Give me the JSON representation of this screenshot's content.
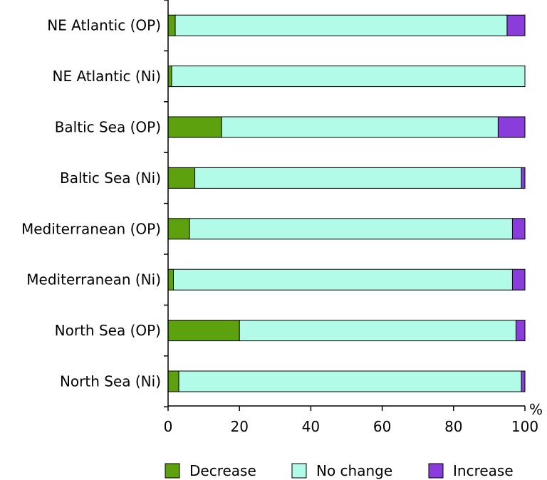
{
  "chart_data": {
    "type": "bar",
    "orientation": "horizontal",
    "stacked": true,
    "title": "",
    "xlabel": "%",
    "ylabel": "",
    "xlim": [
      0,
      100
    ],
    "xticks": [
      "0",
      "20",
      "40",
      "60",
      "80",
      "100"
    ],
    "categories": [
      "NE Atlantic (OP)",
      "NE Atlantic (Ni)",
      "Baltic Sea (OP)",
      "Baltic Sea (Ni)",
      "Mediterranean (OP)",
      "Mediterranean (Ni)",
      "North Sea (OP)",
      "North Sea (Ni)"
    ],
    "series": [
      {
        "name": "Decrease",
        "color": "#5ea10e",
        "values": [
          2,
          1,
          15,
          7.5,
          6,
          1.5,
          20,
          3
        ]
      },
      {
        "name": "No change",
        "color": "#b3fbe9",
        "values": [
          93,
          99,
          77.5,
          91.5,
          90.5,
          95,
          77.5,
          96
        ]
      },
      {
        "name": "Increase",
        "color": "#8a3ddb",
        "values": [
          5,
          0,
          7.5,
          1,
          3.5,
          3.5,
          2.5,
          1
        ]
      }
    ],
    "legend_position": "bottom",
    "grid": false
  }
}
